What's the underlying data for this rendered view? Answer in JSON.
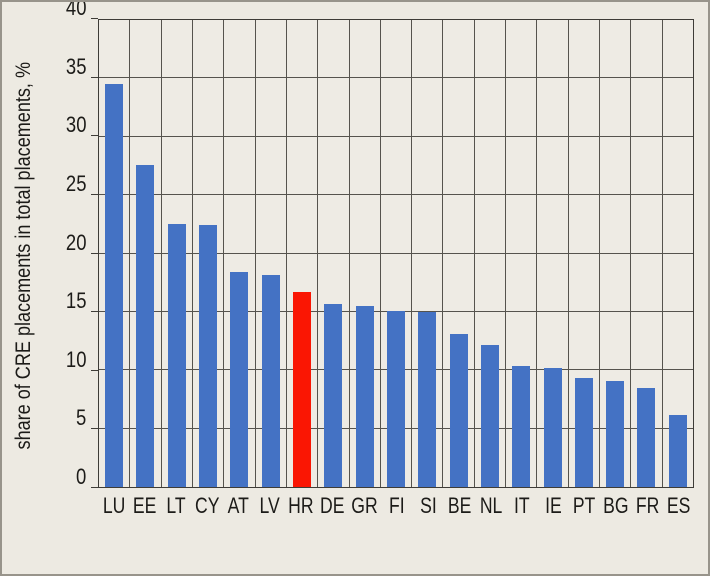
{
  "chart_data": {
    "type": "bar",
    "title": "",
    "ylabel": "share of CRE placements in total placements, %",
    "xlabel": "",
    "categories": [
      "LU",
      "EE",
      "LT",
      "CY",
      "AT",
      "LV",
      "HR",
      "DE",
      "GR",
      "FI",
      "SI",
      "BE",
      "NL",
      "IT",
      "IE",
      "PT",
      "BG",
      "FR",
      "ES"
    ],
    "values": [
      34.5,
      27.6,
      22.5,
      22.4,
      18.4,
      18.2,
      16.7,
      15.7,
      15.5,
      15.1,
      15.0,
      13.1,
      12.2,
      10.4,
      10.2,
      9.3,
      9.1,
      8.5,
      6.2
    ],
    "highlight_category": "HR",
    "ylim": [
      0,
      40
    ],
    "yticks": [
      0,
      5,
      10,
      15,
      20,
      25,
      30,
      35,
      40
    ],
    "grid": "both",
    "legend": "none",
    "colors": {
      "bar": "#4472c4",
      "highlight": "#fa1603",
      "background": "#edeae2",
      "plot_background": "#eeebe4",
      "grid": "#55534d",
      "axis": "#3e3c37",
      "text": "#1c1b18"
    }
  }
}
